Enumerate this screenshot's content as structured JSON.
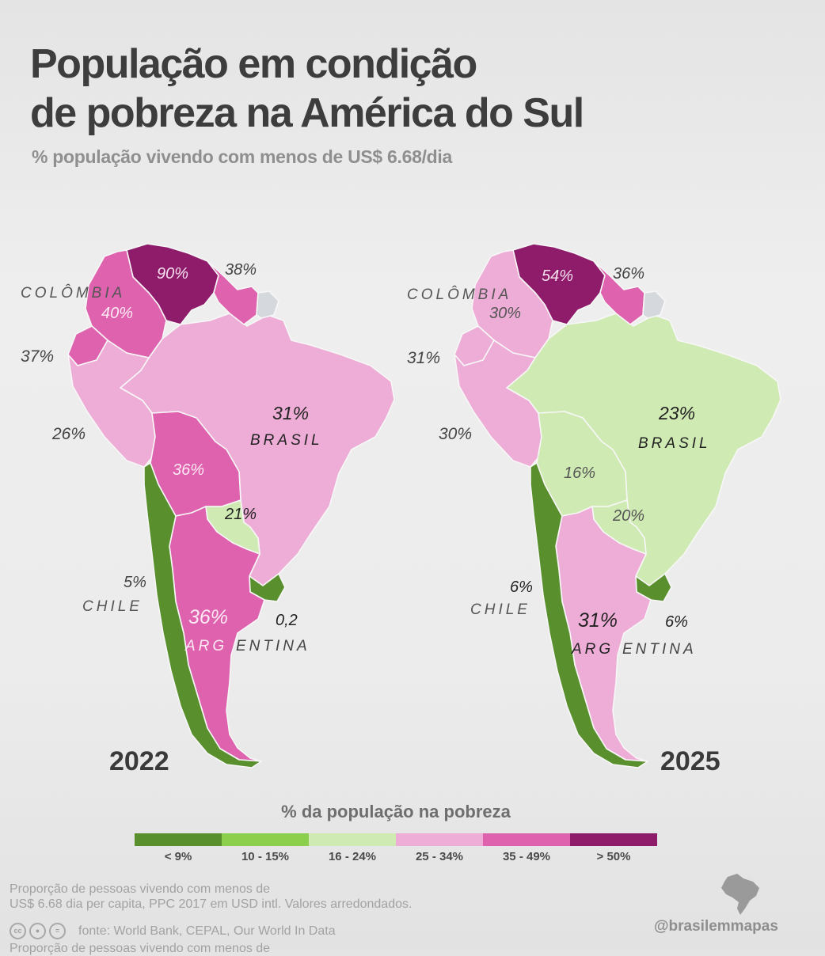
{
  "title": {
    "line1": "População em condição",
    "line2": "de pobreza na América do Sul"
  },
  "subtitle": "% população vivendo com menos de US$ 6.68/dia",
  "colors": {
    "lt9": "#5a8f2e",
    "c10_15": "#8ccf4d",
    "c16_24": "#cfeab2",
    "c25_34": "#eeadd6",
    "c35_49": "#de62ae",
    "gt50": "#8e1c6b",
    "no_data": "#d5d9de",
    "border": "#f7f7f7"
  },
  "maps": [
    {
      "year": "2022",
      "countries": {
        "venezuela": {
          "value": "90%",
          "class": "gt50"
        },
        "colombia": {
          "name": "COLÔMBIA",
          "value": "40%",
          "class": "c35_49"
        },
        "ecuador": {
          "value": "37%",
          "class": "c35_49"
        },
        "peru": {
          "value": "26%",
          "class": "c25_34"
        },
        "brasil": {
          "name": "BRASIL",
          "value": "31%",
          "class": "c25_34"
        },
        "bolivia": {
          "value": "36%",
          "class": "c35_49"
        },
        "paraguay": {
          "value": "21%",
          "class": "c16_24"
        },
        "chile": {
          "name": "CHILE",
          "value": "5%",
          "class": "lt9"
        },
        "argentina": {
          "name_part1": "ARG",
          "name_part2": "ENTINA",
          "value": "36%",
          "class": "c35_49"
        },
        "uruguay": {
          "value": "0,2",
          "class": "lt9"
        },
        "guyana_suriname": {
          "value": "38%",
          "class": "c35_49"
        },
        "french_guiana": {
          "class": "no_data"
        }
      }
    },
    {
      "year": "2025",
      "countries": {
        "venezuela": {
          "value": "54%",
          "class": "gt50"
        },
        "colombia": {
          "name": "COLÔMBIA",
          "value": "30%",
          "class": "c25_34"
        },
        "ecuador": {
          "value": "31%",
          "class": "c25_34"
        },
        "peru": {
          "value": "30%",
          "class": "c25_34"
        },
        "brasil": {
          "name": "BRASIL",
          "value": "23%",
          "class": "c16_24"
        },
        "bolivia": {
          "value": "16%",
          "class": "c16_24"
        },
        "paraguay": {
          "value": "20%",
          "class": "c16_24"
        },
        "chile": {
          "name": "CHILE",
          "value": "6%",
          "class": "lt9"
        },
        "argentina": {
          "name_part1": "ARG",
          "name_part2": "ENTINA",
          "value": "31%",
          "class": "c25_34"
        },
        "uruguay": {
          "value": "6%",
          "class": "lt9"
        },
        "guyana_suriname": {
          "value": "36%",
          "class": "c35_49"
        },
        "french_guiana": {
          "class": "no_data"
        }
      }
    }
  ],
  "legend": {
    "title": "% da população na pobreza",
    "items": [
      {
        "label": "< 9%",
        "class": "lt9"
      },
      {
        "label": "10 - 15%",
        "class": "c10_15"
      },
      {
        "label": "16 - 24%",
        "class": "c16_24"
      },
      {
        "label": "25 - 34%",
        "class": "c25_34"
      },
      {
        "label": "35 - 49%",
        "class": "c35_49"
      },
      {
        "label": "> 50%",
        "class": "gt50"
      }
    ]
  },
  "footnote": {
    "line1": "Proporção de pessoas vivendo com menos de",
    "line2": "US$ 6.68 dia per capita, PPC 2017 em USD intl. Valores arredondados.",
    "source": "fonte: World Bank, CEPAL, Our World In Data",
    "cut_line": "Proporção de pessoas vivendo com menos de"
  },
  "brand": "@brasilemmapas"
}
